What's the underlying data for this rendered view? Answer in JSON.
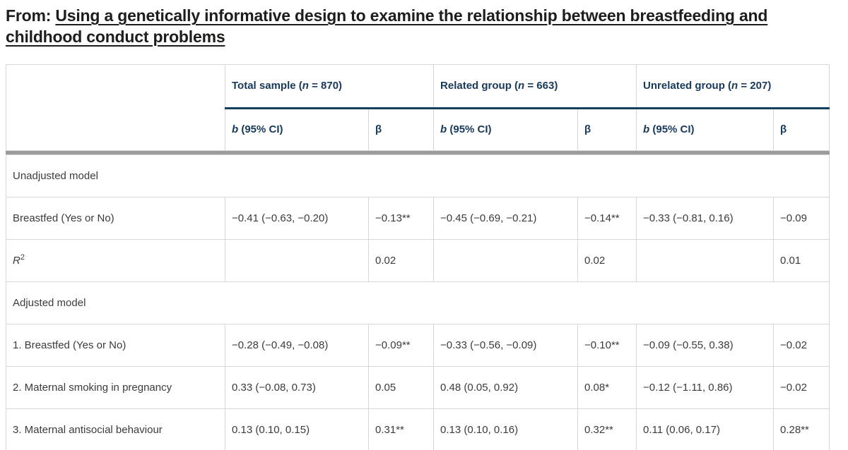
{
  "page": {
    "title_prefix": "From: ",
    "title_link": "Using a genetically informative design to examine the relationship between breastfeeding and childhood conduct problems"
  },
  "colors": {
    "header_navy": "#17395a",
    "navy_rule": "#123e60",
    "divider_gray": "#9b9b9b",
    "cell_border_gray": "#d7d7d7",
    "body_text": "#3b3b3a",
    "title_text": "#1d1d1b"
  },
  "table": {
    "groups": [
      {
        "pre": "Total sample (",
        "n": "n",
        "post": " = 870)"
      },
      {
        "pre": "Related group (",
        "n": "n",
        "post": " = 663)"
      },
      {
        "pre": "Unrelated group (",
        "n": "n",
        "post": " = 207)"
      }
    ],
    "subheader": {
      "b": "b",
      "b_rest": " (95% CI)",
      "beta": "β"
    },
    "sections": [
      {
        "title": "Unadjusted model",
        "rows": [
          {
            "label": "Breastfed (Yes or No)",
            "cells": [
              "−0.41 (−0.63, −0.20)",
              "−0.13**",
              "−0.45 (−0.69, −0.21)",
              "−0.14**",
              "−0.33 (−0.81, 0.16)",
              "−0.09"
            ]
          },
          {
            "label_main": "R",
            "label_sup": "2",
            "cells": [
              "",
              "0.02",
              "",
              "0.02",
              "",
              "0.01"
            ]
          }
        ]
      },
      {
        "title": "Adjusted model",
        "rows": [
          {
            "label": "1. Breastfed (Yes or No)",
            "cells": [
              "−0.28 (−0.49, −0.08)",
              "−0.09**",
              "−0.33 (−0.56, −0.09)",
              "−0.10**",
              "−0.09 (−0.55, 0.38)",
              "−0.02"
            ]
          },
          {
            "label": "2. Maternal smoking in pregnancy",
            "cells": [
              "0.33 (−0.08, 0.73)",
              "0.05",
              "0.48 (0.05, 0.92)",
              "0.08*",
              "−0.12 (−1.11, 0.86)",
              "−0.02"
            ]
          },
          {
            "label": "3. Maternal antisocial behaviour",
            "cells": [
              "0.13 (0.10, 0.15)",
              "0.31**",
              "0.13 (0.10, 0.16)",
              "0.32**",
              "0.11 (0.06, 0.17)",
              "0.28**"
            ]
          }
        ]
      }
    ]
  }
}
